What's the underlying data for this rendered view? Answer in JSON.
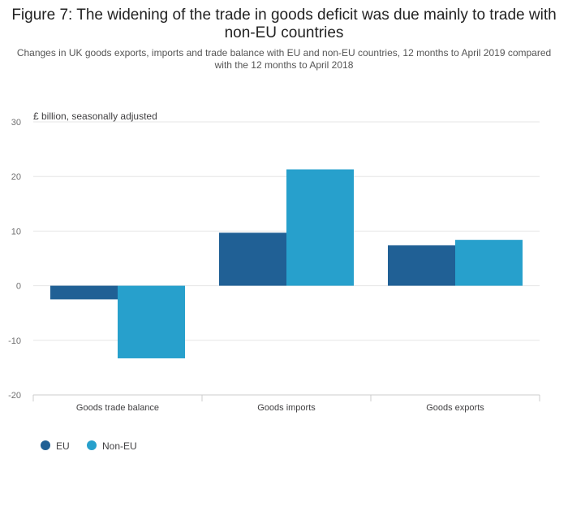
{
  "title": "Figure 7: The widening of the trade in goods deficit was due mainly to trade with non-EU countries",
  "subtitle": "Changes in UK goods exports, imports and trade balance with EU and non-EU countries, 12 months to April 2019 compared with the 12 months to April 2018",
  "colors": {
    "eu": "#206095",
    "non_eu": "#27a0cc",
    "grid": "#e6e6e6",
    "axis": "#cccccc",
    "tick_text": "#707071"
  },
  "chart_data": {
    "type": "bar",
    "title": "Figure 7: The widening of the trade in goods deficit was due mainly to trade with non-EU countries",
    "subtitle": "Changes in UK goods exports, imports and trade balance with EU and non-EU countries, 12 months to April 2019 compared with the 12 months to April 2018",
    "ylabel": "£ billion, seasonally adjusted",
    "xlabel": "",
    "categories": [
      "Goods trade balance",
      "Goods imports",
      "Goods exports"
    ],
    "series": [
      {
        "name": "EU",
        "color": "#206095",
        "values": [
          -2.5,
          9.7,
          7.4
        ]
      },
      {
        "name": "Non-EU",
        "color": "#27a0cc",
        "values": [
          -13.3,
          21.3,
          8.4
        ]
      }
    ],
    "ylim": [
      -20,
      30
    ],
    "yticks": [
      30,
      20,
      10,
      0,
      -10,
      -20
    ],
    "ytick_labels": [
      "30",
      "20",
      "10",
      "0",
      "-10",
      "-20"
    ],
    "grid": true,
    "legend_position": "bottom-left"
  }
}
